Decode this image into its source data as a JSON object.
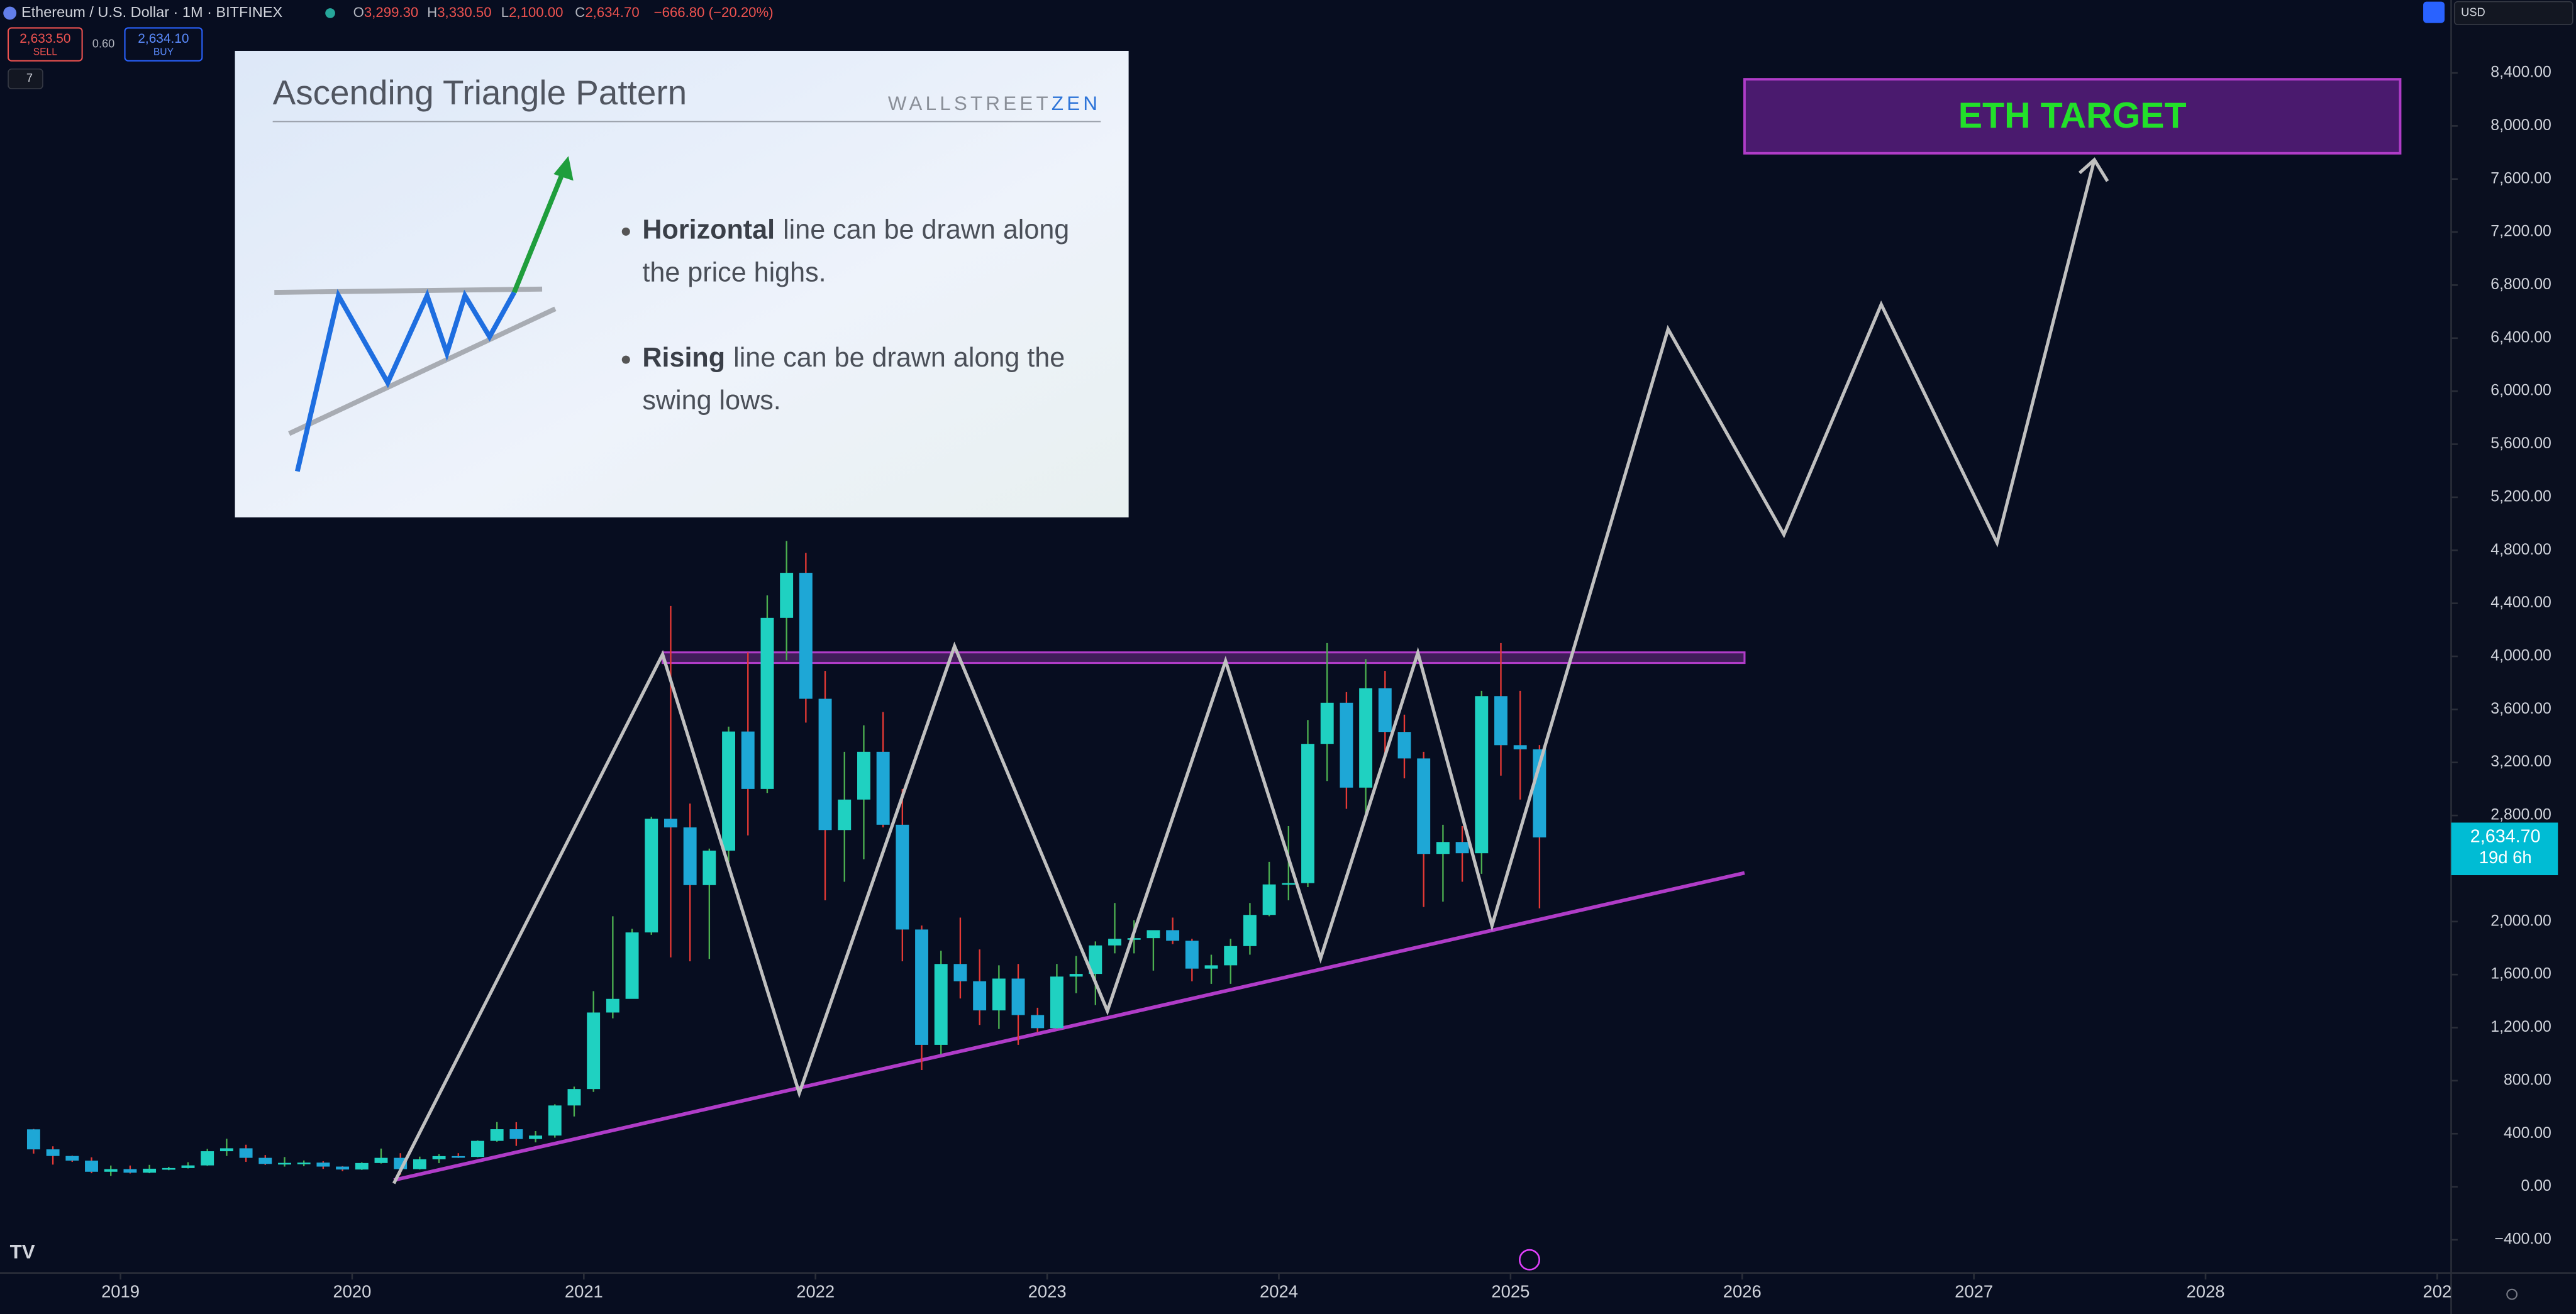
{
  "toolbar": {
    "symbol": "Ethereum / U.S. Dollar · 1M · BITFINEX",
    "ohlc_fields": [
      {
        "key": "O",
        "value": "3,299.30"
      },
      {
        "key": "H",
        "value": "3,330.50"
      },
      {
        "key": "L",
        "value": "2,100.00"
      },
      {
        "key": "C",
        "value": "2,634.70"
      }
    ],
    "change": "−666.80 (−20.20%)",
    "sell": {
      "price": "2,633.50",
      "label": "SELL"
    },
    "spread": "0.60",
    "buy": {
      "price": "2,634.10",
      "label": "BUY"
    },
    "indicators": "7",
    "currency": "USD"
  },
  "inset": {
    "title": "Ascending Triangle Pattern",
    "brand": [
      "WALLSTREET",
      "ZEN"
    ],
    "bullets": [
      {
        "bold": "Horizontal",
        "lines": [
          "line can be drawn along",
          "the price highs."
        ]
      },
      {
        "bold": "Rising",
        "lines": [
          "line can be drawn along the",
          "swing lows."
        ]
      }
    ]
  },
  "chart_data": {
    "type": "candlestick",
    "x": [
      "2018-08",
      "2018-09",
      "2018-10",
      "2018-11",
      "2018-12",
      "2019-01",
      "2019-02",
      "2019-03",
      "2019-04",
      "2019-05",
      "2019-06",
      "2019-07",
      "2019-08",
      "2019-09",
      "2019-10",
      "2019-11",
      "2019-12",
      "2020-01",
      "2020-02",
      "2020-03",
      "2020-04",
      "2020-05",
      "2020-06",
      "2020-07",
      "2020-08",
      "2020-09",
      "2020-10",
      "2020-11",
      "2020-12",
      "2021-01",
      "2021-02",
      "2021-03",
      "2021-04",
      "2021-05",
      "2021-06",
      "2021-07",
      "2021-08",
      "2021-09",
      "2021-10",
      "2021-11",
      "2021-12",
      "2022-01",
      "2022-02",
      "2022-03",
      "2022-04",
      "2022-05",
      "2022-06",
      "2022-07",
      "2022-08",
      "2022-09",
      "2022-10",
      "2022-11",
      "2022-12",
      "2023-01",
      "2023-02",
      "2023-03",
      "2023-04",
      "2023-05",
      "2023-06",
      "2023-07",
      "2023-08",
      "2023-09",
      "2023-10",
      "2023-11",
      "2023-12",
      "2024-01",
      "2024-02",
      "2024-03",
      "2024-04",
      "2024-05",
      "2024-06",
      "2024-07",
      "2024-08",
      "2024-09",
      "2024-10",
      "2024-11",
      "2024-12",
      "2025-01",
      "2025-02"
    ],
    "ohlc": [
      [
        433,
        436,
        250,
        282
      ],
      [
        282,
        305,
        167,
        232
      ],
      [
        232,
        235,
        188,
        197
      ],
      [
        197,
        222,
        102,
        113
      ],
      [
        113,
        160,
        82,
        133
      ],
      [
        133,
        160,
        100,
        106
      ],
      [
        106,
        165,
        102,
        136
      ],
      [
        136,
        150,
        125,
        141
      ],
      [
        141,
        185,
        138,
        161
      ],
      [
        161,
        285,
        158,
        268
      ],
      [
        268,
        362,
        232,
        290
      ],
      [
        290,
        317,
        188,
        218
      ],
      [
        218,
        239,
        165,
        172
      ],
      [
        172,
        224,
        152,
        180
      ],
      [
        180,
        198,
        155,
        182
      ],
      [
        182,
        192,
        135,
        152
      ],
      [
        152,
        155,
        117,
        130
      ],
      [
        130,
        184,
        127,
        179
      ],
      [
        179,
        288,
        175,
        218
      ],
      [
        218,
        253,
        90,
        133
      ],
      [
        133,
        227,
        130,
        207
      ],
      [
        207,
        245,
        178,
        231
      ],
      [
        231,
        253,
        217,
        225
      ],
      [
        225,
        350,
        222,
        346
      ],
      [
        346,
        488,
        340,
        434
      ],
      [
        434,
        487,
        308,
        360
      ],
      [
        360,
        420,
        335,
        386
      ],
      [
        386,
        622,
        370,
        613
      ],
      [
        613,
        755,
        530,
        737
      ],
      [
        737,
        1475,
        715,
        1314
      ],
      [
        1314,
        2040,
        1270,
        1417
      ],
      [
        1417,
        1945,
        1430,
        1918
      ],
      [
        1918,
        2790,
        1900,
        2775
      ],
      [
        2775,
        4380,
        1730,
        2710
      ],
      [
        2710,
        2890,
        1700,
        2275
      ],
      [
        2275,
        2550,
        1718,
        2535
      ],
      [
        2535,
        3470,
        2450,
        3433
      ],
      [
        3433,
        4030,
        2650,
        3000
      ],
      [
        3000,
        4460,
        2970,
        4290
      ],
      [
        4290,
        4870,
        3970,
        4630
      ],
      [
        4630,
        4780,
        3500,
        3680
      ],
      [
        3680,
        3890,
        2160,
        2690
      ],
      [
        2690,
        3280,
        2300,
        2920
      ],
      [
        2920,
        3480,
        2470,
        3280
      ],
      [
        3280,
        3580,
        2710,
        2730
      ],
      [
        2730,
        3000,
        1700,
        1940
      ],
      [
        1940,
        1970,
        880,
        1070
      ],
      [
        1070,
        1780,
        1000,
        1680
      ],
      [
        1680,
        2030,
        1420,
        1550
      ],
      [
        1550,
        1790,
        1220,
        1330
      ],
      [
        1330,
        1670,
        1190,
        1570
      ],
      [
        1570,
        1680,
        1070,
        1295
      ],
      [
        1295,
        1350,
        1165,
        1196
      ],
      [
        1196,
        1680,
        1190,
        1585
      ],
      [
        1585,
        1740,
        1460,
        1605
      ],
      [
        1605,
        1850,
        1370,
        1820
      ],
      [
        1820,
        2140,
        1760,
        1870
      ],
      [
        1870,
        2010,
        1760,
        1875
      ],
      [
        1875,
        1930,
        1630,
        1935
      ],
      [
        1935,
        2030,
        1830,
        1855
      ],
      [
        1855,
        1870,
        1550,
        1645
      ],
      [
        1645,
        1750,
        1530,
        1670
      ],
      [
        1670,
        1870,
        1530,
        1815
      ],
      [
        1815,
        2140,
        1750,
        2050
      ],
      [
        2050,
        2450,
        2040,
        2280
      ],
      [
        2280,
        2720,
        2160,
        2290
      ],
      [
        2290,
        3520,
        2260,
        3340
      ],
      [
        3340,
        4100,
        3060,
        3650
      ],
      [
        3650,
        3730,
        2850,
        3010
      ],
      [
        3010,
        3980,
        2810,
        3760
      ],
      [
        3760,
        3890,
        3250,
        3430
      ],
      [
        3430,
        3560,
        3080,
        3230
      ],
      [
        3230,
        3280,
        2110,
        2510
      ],
      [
        2510,
        2730,
        2150,
        2600
      ],
      [
        2600,
        2720,
        2300,
        2515
      ],
      [
        2515,
        3740,
        2360,
        3700
      ],
      [
        3700,
        4100,
        3100,
        3330
      ],
      [
        3330,
        3740,
        2920,
        3299.3
      ],
      [
        3299.3,
        3330.5,
        2100,
        2634.7
      ]
    ],
    "up_color": "#1fd1c1",
    "down_color": "#1ea7d6",
    "up_wick": "#4caf50",
    "down_wick": "#e53935",
    "xlim": [
      2018.48,
      2029.06
    ],
    "xticks": [
      2019,
      2020,
      2021,
      2022,
      2023,
      2024,
      2025,
      2026,
      2027,
      2028,
      {
        "value": 2029,
        "label": "202"
      }
    ],
    "ylim": [
      -650,
      8950
    ],
    "yticks": [
      {
        "value": -400,
        "label": "−400.00"
      },
      {
        "value": 0,
        "label": "0.00"
      },
      {
        "value": 400,
        "label": "400.00"
      },
      {
        "value": 800,
        "label": "800.00"
      },
      {
        "value": 1200,
        "label": "1,200.00"
      },
      {
        "value": 1600,
        "label": "1,600.00"
      },
      {
        "value": 2000,
        "label": "2,000.00"
      },
      {
        "value": 2400,
        "label": "2,400.00"
      },
      {
        "value": 2800,
        "label": "2,800.00"
      },
      {
        "value": 3200,
        "label": "3,200.00"
      },
      {
        "value": 3600,
        "label": "3,600.00"
      },
      {
        "value": 4000,
        "label": "4,000.00"
      },
      {
        "value": 4400,
        "label": "4,400.00"
      },
      {
        "value": 4800,
        "label": "4,800.00"
      },
      {
        "value": 5200,
        "label": "5,200.00"
      },
      {
        "value": 5600,
        "label": "5,600.00"
      },
      {
        "value": 6000,
        "label": "6,000.00"
      },
      {
        "value": 6400,
        "label": "6,400.00"
      },
      {
        "value": 6800,
        "label": "6,800.00"
      },
      {
        "value": 7200,
        "label": "7,200.00"
      },
      {
        "value": 7600,
        "label": "7,600.00"
      },
      {
        "value": 8000,
        "label": "8,000.00"
      },
      {
        "value": 8400,
        "label": "8,400.00"
      }
    ],
    "price_tag": {
      "value": 2634.7,
      "label": "2,634.70",
      "countdown": "19d 6h",
      "color": "#00bcd4"
    },
    "drawings": {
      "zigzag": {
        "color": "#c0c0c0",
        "points": [
          [
            2020.18,
            25
          ],
          [
            2021.34,
            4015
          ],
          [
            2021.93,
            706
          ],
          [
            2022.6,
            4077
          ],
          [
            2023.26,
            1326
          ],
          [
            2023.77,
            3965
          ],
          [
            2024.18,
            1722
          ],
          [
            2024.6,
            4027
          ],
          [
            2024.92,
            1970
          ],
          [
            2025.68,
            6468
          ],
          [
            2026.18,
            4919
          ],
          [
            2026.6,
            6654
          ],
          [
            2027.1,
            4857
          ],
          [
            2027.52,
            7745
          ]
        ]
      },
      "support": {
        "color": "#b03cc8",
        "points": [
          [
            2020.18,
            50
          ],
          [
            2026.01,
            2367
          ]
        ]
      },
      "resistance": {
        "color": "#b03cc8",
        "x": [
          2021.34,
          2026.01
        ],
        "y": [
          3950,
          4030
        ]
      },
      "target": {
        "label": "ETH TARGET",
        "color": "#4a1a6e",
        "border": "#b03cc8",
        "text_color": "#22e02a",
        "x": [
          2026.01,
          2028.84
        ],
        "y": [
          7794,
          8352
        ]
      }
    }
  }
}
